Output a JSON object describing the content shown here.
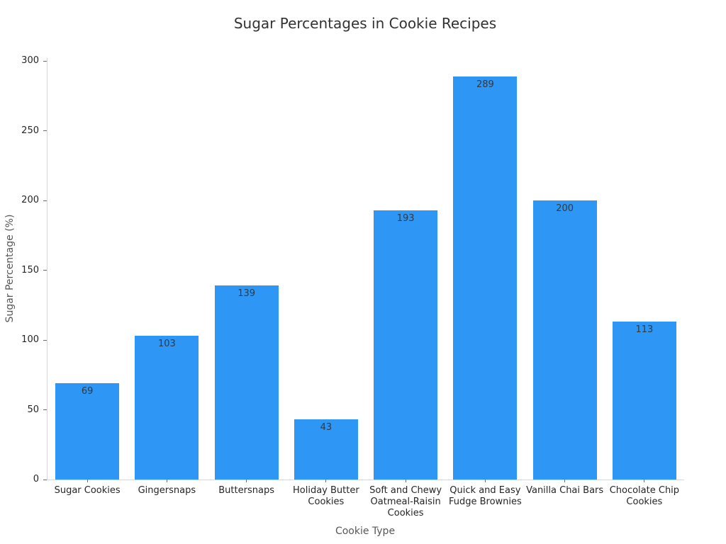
{
  "figure": {
    "background": "#ffffff"
  },
  "chart_data": {
    "type": "bar",
    "title": "Sugar Percentages in Cookie Recipes",
    "xlabel": "Cookie Type",
    "ylabel": "Sugar Percentage (%)",
    "categories": [
      "Sugar Cookies",
      "Gingersnaps",
      "Buttersnaps",
      "Holiday Butter\nCookies",
      "Soft and Chewy\nOatmeal-Raisin\nCookies",
      "Quick and Easy\nFudge Brownies",
      "Vanilla Chai Bars",
      "Chocolate Chip\nCookies"
    ],
    "values": [
      69,
      103,
      139,
      43,
      193,
      289,
      200,
      113
    ],
    "value_labels_shown": true,
    "ylim": [
      0,
      300
    ],
    "yticks": [
      0,
      50,
      100,
      150,
      200,
      250,
      300
    ],
    "grid": false,
    "legend": null,
    "bar_color": "#2E96F5",
    "value_label_color": "#333a40",
    "axis_line_color": "#d6d6d6",
    "tick_color": "#6e6e6e",
    "tick_label_color": "#262626",
    "axis_title_color": "#575757",
    "title_color": "#323232"
  }
}
